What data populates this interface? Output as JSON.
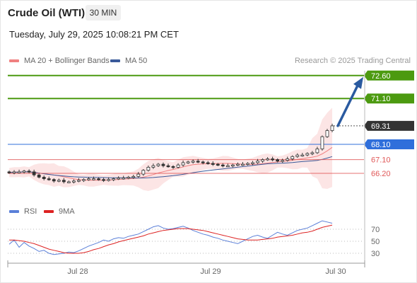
{
  "header": {
    "title": "Crude Oil (WTI)",
    "interval": "30 MIN",
    "datetime": "Tuesday, July 29, 2025 10:08:21 PM CET"
  },
  "legend": {
    "ma20_label": "MA 20 + Bollinger Bands",
    "ma50_label": "MA 50",
    "credit": "Research © 2025 Trading Central"
  },
  "colors": {
    "target": "#4c9a10",
    "current": "#333333",
    "pivot": "#2f6fdb",
    "support": "#e05858",
    "ma20": "#f08080",
    "ma50": "#3a5a9a",
    "arrow": "#2a5aa0",
    "rsi": "#5a7fd8",
    "rsi_ma": "#dd2222"
  },
  "chart_data": [
    {
      "type": "candlestick",
      "instrument": "Crude Oil (WTI)",
      "interval": "30 MIN",
      "x_tick_labels": [
        "Jul 28",
        "Jul 29",
        "Jul 30"
      ],
      "series": [
        {
          "name": "MA 20 + Bollinger Bands",
          "color": "#f08080"
        },
        {
          "name": "MA 50",
          "color": "#3a5a9a"
        }
      ],
      "price_levels": [
        {
          "label": "72.60",
          "value": 72.6,
          "kind": "target"
        },
        {
          "label": "71.10",
          "value": 71.1,
          "kind": "target"
        },
        {
          "label": "69.31",
          "value": 69.31,
          "kind": "current"
        },
        {
          "label": "68.10",
          "value": 68.1,
          "kind": "pivot"
        },
        {
          "label": "67.10",
          "value": 67.1,
          "kind": "support"
        },
        {
          "label": "66.20",
          "value": 66.2,
          "kind": "support"
        }
      ],
      "close_approx": [
        66.25,
        66.3,
        66.3,
        66.35,
        66.3,
        66.1,
        65.95,
        65.85,
        65.8,
        65.7,
        65.75,
        65.65,
        65.65,
        65.7,
        65.75,
        65.8,
        65.85,
        65.85,
        65.8,
        65.75,
        65.8,
        65.85,
        65.9,
        65.9,
        65.95,
        66.0,
        66.15,
        66.4,
        66.6,
        66.7,
        66.8,
        66.7,
        66.65,
        66.6,
        66.75,
        66.9,
        66.95,
        67.0,
        66.95,
        66.9,
        66.85,
        66.8,
        66.75,
        66.7,
        66.7,
        66.75,
        66.8,
        66.8,
        66.85,
        66.9,
        67.0,
        67.1,
        67.15,
        67.1,
        67.0,
        67.05,
        67.15,
        67.3,
        67.4,
        67.4,
        67.5,
        67.55,
        67.8,
        68.6,
        69.0,
        69.31
      ],
      "rsi": {
        "series_names": [
          "RSI",
          "9MA"
        ],
        "y_tick_labels": [
          "70",
          "50",
          "30"
        ],
        "ylim": [
          20,
          85
        ],
        "rsi_values": [
          45,
          52,
          40,
          48,
          42,
          38,
          33,
          35,
          30,
          28,
          29,
          30,
          32,
          31,
          34,
          38,
          42,
          45,
          48,
          52,
          50,
          54,
          56,
          55,
          58,
          60,
          62,
          66,
          70,
          74,
          76,
          72,
          70,
          71,
          73,
          75,
          72,
          68,
          65,
          62,
          60,
          57,
          55,
          52,
          50,
          48,
          46,
          50,
          54,
          58,
          60,
          57,
          55,
          60,
          65,
          62,
          60,
          64,
          68,
          70,
          72,
          76,
          80,
          84,
          82,
          80
        ],
        "ma_values": [
          52,
          52,
          51,
          50,
          48,
          46,
          43,
          40,
          37,
          35,
          33,
          31,
          30,
          30,
          30,
          31,
          33,
          36,
          38,
          41,
          44,
          46,
          49,
          51,
          53,
          55,
          57,
          59,
          62,
          64,
          66,
          68,
          69,
          70,
          71,
          71,
          71,
          70,
          69,
          68,
          66,
          64,
          62,
          60,
          58,
          56,
          54,
          53,
          52,
          52,
          52,
          53,
          54,
          55,
          57,
          58,
          59,
          60,
          62,
          64,
          65,
          67,
          70,
          73,
          75,
          77
        ]
      }
    }
  ]
}
